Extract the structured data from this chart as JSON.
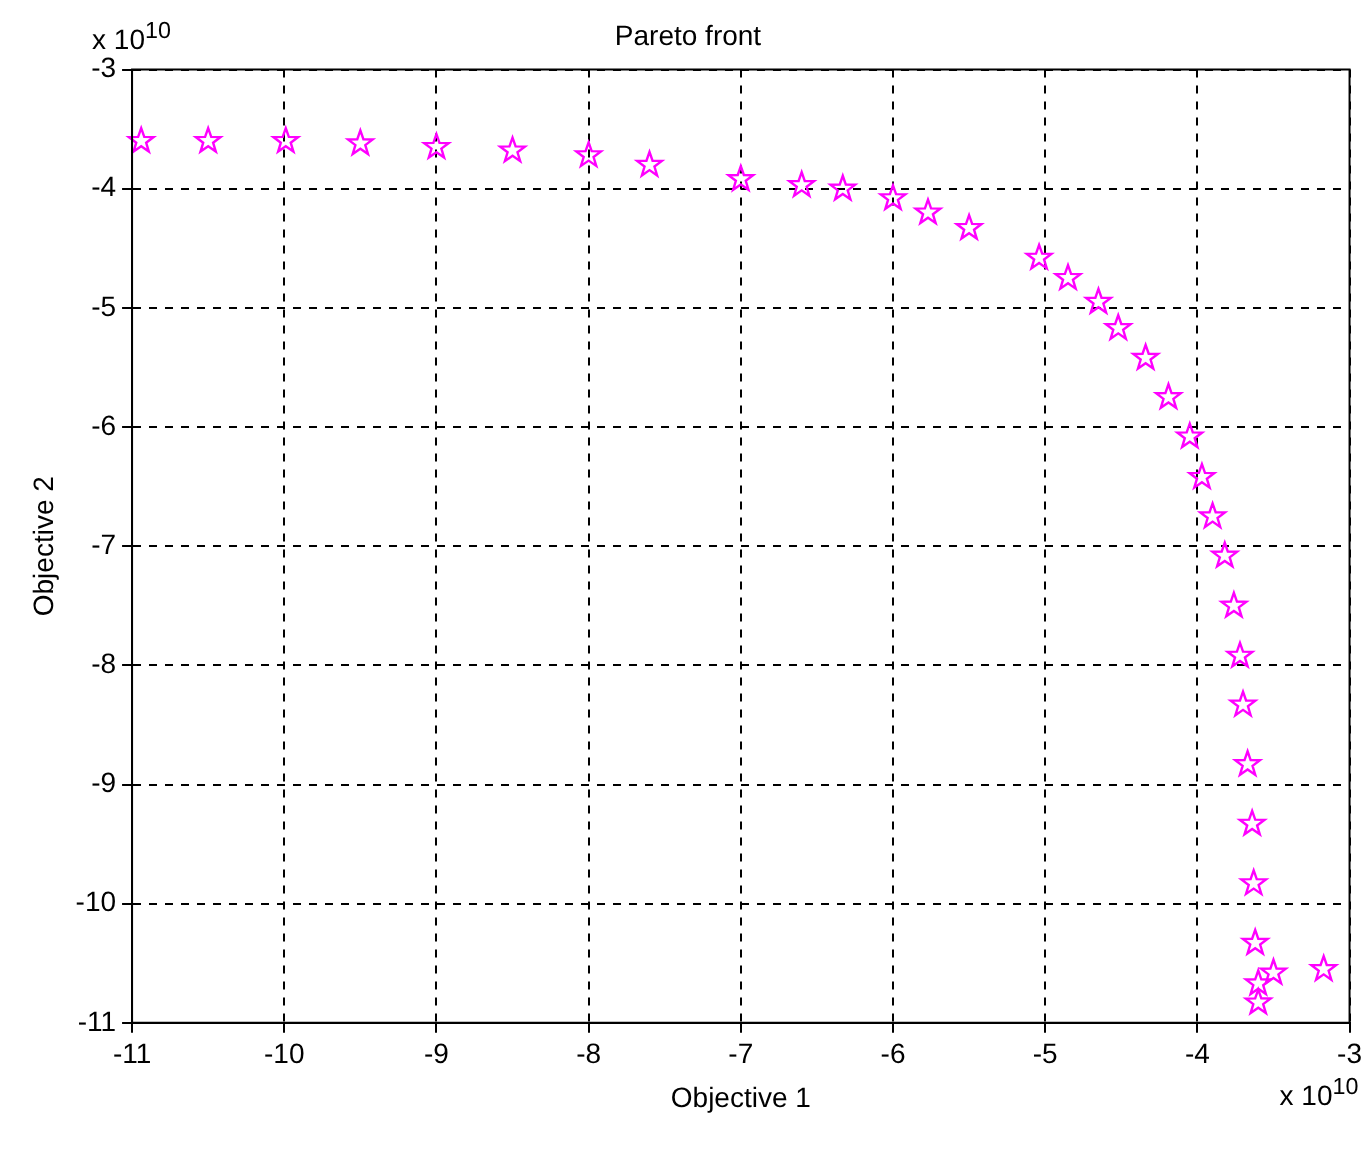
{
  "chart_data": {
    "type": "scatter",
    "title": "Pareto front",
    "xlabel": "Objective 1",
    "ylabel": "Objective 2",
    "annotations": [
      "x 10$^{10}$",
      "x 10$^{10}$"
    ],
    "xlim": [
      -11,
      -3
    ],
    "xticks": [
      -11,
      -10,
      -9,
      -8,
      -7,
      -6,
      -5,
      -4,
      -3
    ],
    "ylim": [
      -11,
      -3
    ],
    "yticks": [
      -11,
      -10,
      -9,
      -8,
      -7,
      -6,
      -5,
      -4,
      -3
    ],
    "grid": true,
    "marker": "star",
    "series": [
      {
        "color": "#ff00ff",
        "x": [
          -10.94,
          -10.5,
          -9.99,
          -9.5,
          -9.0,
          -8.5,
          -8.0,
          -7.6,
          -7.0,
          -6.6,
          -6.33,
          -6.0,
          -5.77,
          -5.5,
          -5.04,
          -4.85,
          -4.65,
          -4.52,
          -4.34,
          -4.19,
          -4.05,
          -3.97,
          -3.9,
          -3.82,
          -3.76,
          -3.72,
          -3.7,
          -3.67,
          -3.64,
          -3.63,
          -3.62,
          -3.6,
          -3.6,
          -3.5,
          -3.17
        ],
        "values": [
          -3.6,
          -3.6,
          -3.6,
          -3.62,
          -3.65,
          -3.68,
          -3.72,
          -3.8,
          -3.92,
          -3.97,
          -4.0,
          -4.08,
          -4.2,
          -4.33,
          -4.58,
          -4.75,
          -4.95,
          -5.17,
          -5.42,
          -5.75,
          -6.08,
          -6.42,
          -6.75,
          -7.08,
          -7.5,
          -7.92,
          -8.33,
          -8.83,
          -9.33,
          -9.83,
          -10.33,
          -10.67,
          -10.83,
          -10.58,
          -10.55
        ]
      }
    ]
  }
}
